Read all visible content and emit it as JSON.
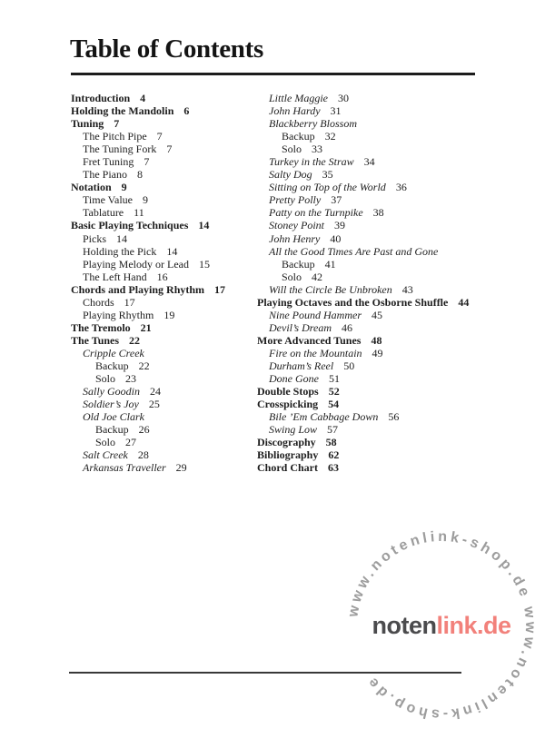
{
  "page": {
    "title": "Table of Contents"
  },
  "toc": {
    "left": [
      {
        "label": "Introduction",
        "page": "4",
        "style": "bold",
        "indent": 0
      },
      {
        "label": "Holding the Mandolin",
        "page": "6",
        "style": "bold",
        "indent": 0
      },
      {
        "label": "Tuning",
        "page": "7",
        "style": "bold",
        "indent": 0
      },
      {
        "label": "The Pitch Pipe",
        "page": "7",
        "style": "plain",
        "indent": 1
      },
      {
        "label": "The Tuning Fork",
        "page": "7",
        "style": "plain",
        "indent": 1
      },
      {
        "label": "Fret Tuning",
        "page": "7",
        "style": "plain",
        "indent": 1
      },
      {
        "label": "The Piano",
        "page": "8",
        "style": "plain",
        "indent": 1
      },
      {
        "label": "Notation",
        "page": "9",
        "style": "bold",
        "indent": 0
      },
      {
        "label": "Time Value",
        "page": "9",
        "style": "plain",
        "indent": 1
      },
      {
        "label": "Tablature",
        "page": "11",
        "style": "plain",
        "indent": 1
      },
      {
        "label": "Basic Playing Techniques",
        "page": "14",
        "style": "bold",
        "indent": 0
      },
      {
        "label": "Picks",
        "page": "14",
        "style": "plain",
        "indent": 1
      },
      {
        "label": "Holding the Pick",
        "page": "14",
        "style": "plain",
        "indent": 1
      },
      {
        "label": "Playing Melody or Lead",
        "page": "15",
        "style": "plain",
        "indent": 1
      },
      {
        "label": "The Left Hand",
        "page": "16",
        "style": "plain",
        "indent": 1
      },
      {
        "label": "Chords and Playing Rhythm",
        "page": "17",
        "style": "bold",
        "indent": 0
      },
      {
        "label": "Chords",
        "page": "17",
        "style": "plain",
        "indent": 1
      },
      {
        "label": "Playing Rhythm",
        "page": "19",
        "style": "plain",
        "indent": 1
      },
      {
        "label": "The Tremolo",
        "page": "21",
        "style": "bold",
        "indent": 0
      },
      {
        "label": "The Tunes",
        "page": "22",
        "style": "bold",
        "indent": 0
      },
      {
        "label": "Cripple Creek",
        "page": "",
        "style": "italic",
        "indent": 1
      },
      {
        "label": "Backup",
        "page": "22",
        "style": "plain",
        "indent": 2
      },
      {
        "label": "Solo",
        "page": "23",
        "style": "plain",
        "indent": 2
      },
      {
        "label": "Sally Goodin",
        "page": "24",
        "style": "italic",
        "indent": 1
      },
      {
        "label": "Soldier’s Joy",
        "page": "25",
        "style": "italic",
        "indent": 1
      },
      {
        "label": "Old Joe Clark",
        "page": "",
        "style": "italic",
        "indent": 1
      },
      {
        "label": "Backup",
        "page": "26",
        "style": "plain",
        "indent": 2
      },
      {
        "label": "Solo",
        "page": "27",
        "style": "plain",
        "indent": 2
      },
      {
        "label": "Salt Creek",
        "page": "28",
        "style": "italic",
        "indent": 1
      },
      {
        "label": "Arkansas Traveller",
        "page": "29",
        "style": "italic",
        "indent": 1
      }
    ],
    "right": [
      {
        "label": "Little Maggie",
        "page": "30",
        "style": "italic",
        "indent": 1
      },
      {
        "label": "John Hardy",
        "page": "31",
        "style": "italic",
        "indent": 1
      },
      {
        "label": "Blackberry Blossom",
        "page": "",
        "style": "italic",
        "indent": 1
      },
      {
        "label": "Backup",
        "page": "32",
        "style": "plain",
        "indent": 2
      },
      {
        "label": "Solo",
        "page": "33",
        "style": "plain",
        "indent": 2
      },
      {
        "label": "Turkey in the Straw",
        "page": "34",
        "style": "italic",
        "indent": 1
      },
      {
        "label": "Salty Dog",
        "page": "35",
        "style": "italic",
        "indent": 1
      },
      {
        "label": "Sitting on Top of the World",
        "page": "36",
        "style": "italic",
        "indent": 1
      },
      {
        "label": "Pretty Polly",
        "page": "37",
        "style": "italic",
        "indent": 1
      },
      {
        "label": "Patty on the Turnpike",
        "page": "38",
        "style": "italic",
        "indent": 1
      },
      {
        "label": "Stoney Point",
        "page": "39",
        "style": "italic",
        "indent": 1
      },
      {
        "label": "John Henry",
        "page": "40",
        "style": "italic",
        "indent": 1
      },
      {
        "label": "All the Good Times Are Past and Gone",
        "page": "",
        "style": "italic",
        "indent": 1
      },
      {
        "label": "Backup",
        "page": "41",
        "style": "plain",
        "indent": 2
      },
      {
        "label": "Solo",
        "page": "42",
        "style": "plain",
        "indent": 2
      },
      {
        "label": "Will the Circle Be Unbroken",
        "page": "43",
        "style": "italic",
        "indent": 1
      },
      {
        "label": "Playing Octaves and the Osborne Shuffle",
        "page": "44",
        "style": "bold",
        "indent": 0
      },
      {
        "label": "Nine Pound Hammer",
        "page": "45",
        "style": "italic",
        "indent": 1
      },
      {
        "label": "Devil’s Dream",
        "page": "46",
        "style": "italic",
        "indent": 1
      },
      {
        "label": "More Advanced Tunes",
        "page": "48",
        "style": "bold",
        "indent": 0
      },
      {
        "label": "Fire on the Mountain",
        "page": "49",
        "style": "italic",
        "indent": 1
      },
      {
        "label": "Durham’s Reel",
        "page": "50",
        "style": "italic",
        "indent": 1
      },
      {
        "label": "Done Gone",
        "page": "51",
        "style": "italic",
        "indent": 1
      },
      {
        "label": "Double Stops",
        "page": "52",
        "style": "bold",
        "indent": 0
      },
      {
        "label": "Crosspicking",
        "page": "54",
        "style": "bold",
        "indent": 0
      },
      {
        "label": "Bile ’Em Cabbage Down",
        "page": "56",
        "style": "italic",
        "indent": 1
      },
      {
        "label": "Swing Low",
        "page": "57",
        "style": "italic",
        "indent": 1
      },
      {
        "label": "Discography",
        "page": "58",
        "style": "bold",
        "indent": 0
      },
      {
        "label": "Bibliography",
        "page": "62",
        "style": "bold",
        "indent": 0
      },
      {
        "label": "Chord Chart",
        "page": "63",
        "style": "bold",
        "indent": 0
      }
    ]
  },
  "watermark": {
    "ring_text": "www.notenlink-shop.de www.notenlink-shop.de ",
    "logo_part1": "noten",
    "logo_part2": "link.de",
    "colors": {
      "ring_gray": "#9c9c9c",
      "logo_dark": "#4b4b4d",
      "logo_red": "#f2817b"
    }
  }
}
